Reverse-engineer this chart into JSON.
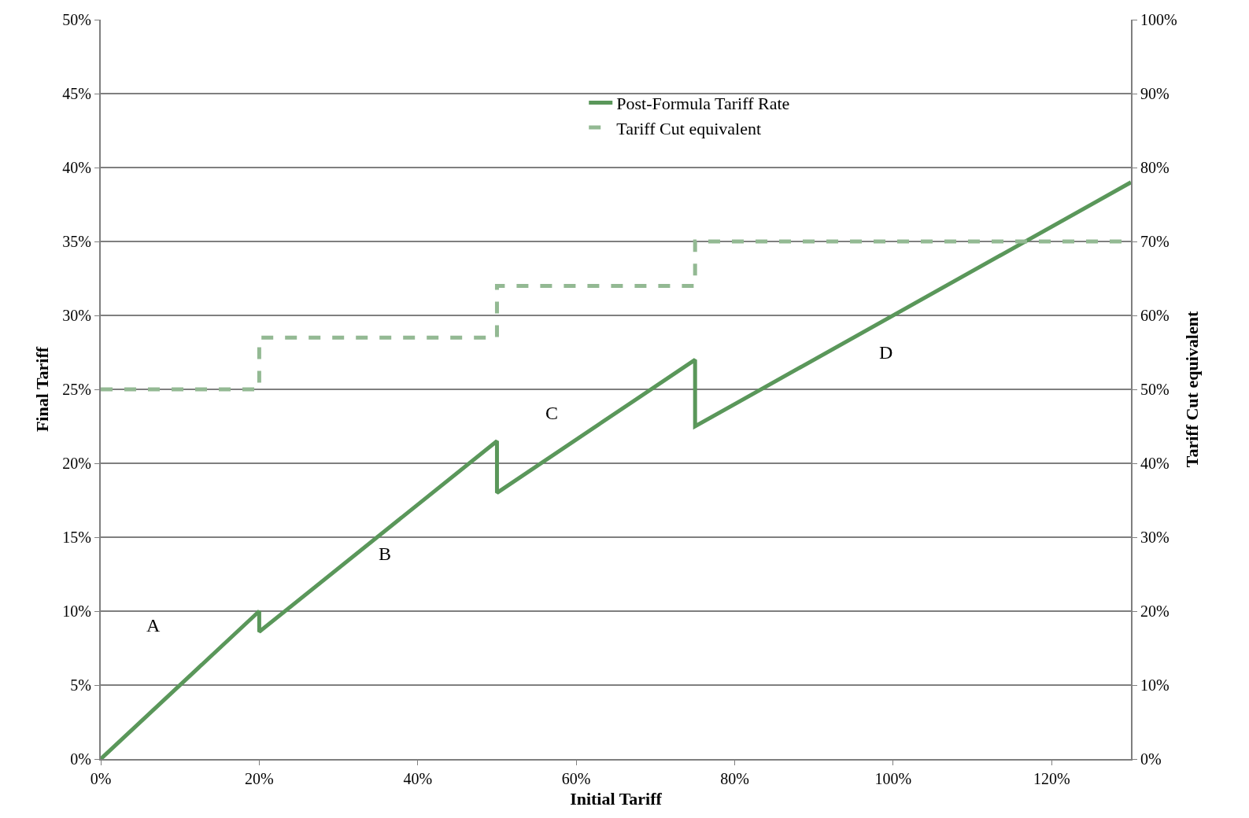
{
  "chart_data": {
    "type": "line",
    "xlabel": "Initial Tariff",
    "ylabel": "Final Tariff",
    "y2label": "Tariff Cut equivalent",
    "xlim": [
      0,
      130
    ],
    "xticks": [
      {
        "value": 0,
        "label": "0%"
      },
      {
        "value": 20,
        "label": "20%"
      },
      {
        "value": 40,
        "label": "40%"
      },
      {
        "value": 60,
        "label": "60%"
      },
      {
        "value": 80,
        "label": "80%"
      },
      {
        "value": 100,
        "label": "100%"
      },
      {
        "value": 120,
        "label": "120%"
      }
    ],
    "ylim": [
      0,
      50
    ],
    "yticks": [
      {
        "value": 0,
        "label": "0%"
      },
      {
        "value": 5,
        "label": "5%"
      },
      {
        "value": 10,
        "label": "10%"
      },
      {
        "value": 15,
        "label": "15%"
      },
      {
        "value": 20,
        "label": "20%"
      },
      {
        "value": 25,
        "label": "25%"
      },
      {
        "value": 30,
        "label": "30%"
      },
      {
        "value": 35,
        "label": "35%"
      },
      {
        "value": 40,
        "label": "40%"
      },
      {
        "value": 45,
        "label": "45%"
      },
      {
        "value": 50,
        "label": "50%"
      }
    ],
    "y2lim": [
      0,
      100
    ],
    "y2ticks": [
      {
        "value": 0,
        "label": "0%"
      },
      {
        "value": 10,
        "label": "10%"
      },
      {
        "value": 20,
        "label": "20%"
      },
      {
        "value": 30,
        "label": "30%"
      },
      {
        "value": 40,
        "label": "40%"
      },
      {
        "value": 50,
        "label": "50%"
      },
      {
        "value": 60,
        "label": "60%"
      },
      {
        "value": 70,
        "label": "70%"
      },
      {
        "value": 80,
        "label": "80%"
      },
      {
        "value": 90,
        "label": "90%"
      },
      {
        "value": 100,
        "label": "100%"
      }
    ],
    "series": [
      {
        "name": "Post-Formula Tariff Rate",
        "color": "#5a975a",
        "line_style": "solid",
        "x": [
          0,
          20,
          20,
          50,
          50,
          75,
          75,
          130
        ],
        "values": [
          0,
          10,
          8.6,
          21.5,
          18,
          27,
          22.5,
          39
        ]
      },
      {
        "name": "Tariff Cut equivalent",
        "type": "step",
        "axis": "y2",
        "color": "#93b993",
        "line_style": "dashed",
        "x": [
          0,
          20,
          50,
          75,
          130
        ],
        "values": [
          50,
          57,
          64,
          70,
          70
        ]
      }
    ],
    "annotations": [
      "A",
      "B",
      "C",
      "D"
    ],
    "grid": "y",
    "legend": "top",
    "marker": "none"
  }
}
